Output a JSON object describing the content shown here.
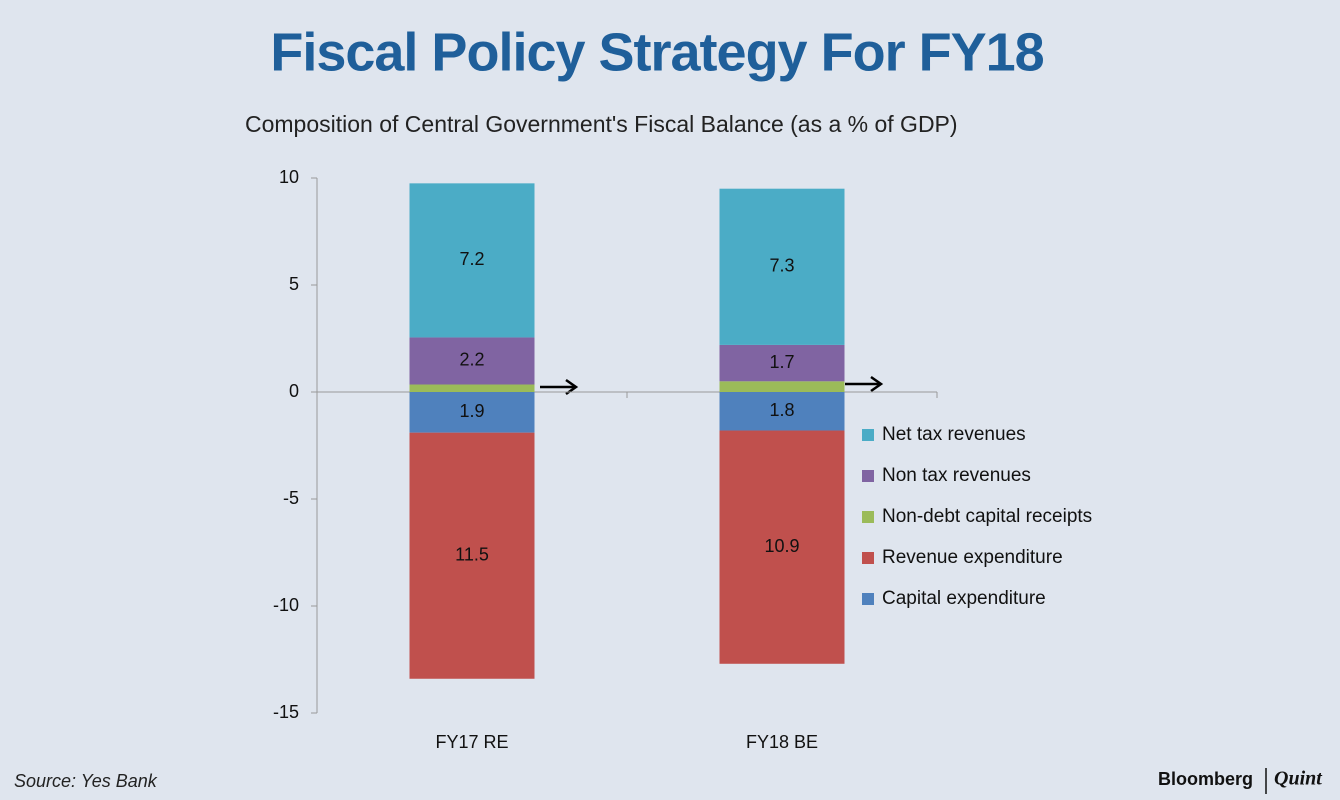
{
  "chart_data": {
    "type": "stacked-bar",
    "title": "Fiscal Policy Strategy For FY18",
    "subtitle": "Composition  of Central Government's Fiscal Balance (as a % of GDP)",
    "source": "Source: Yes Bank",
    "brand": [
      "Bloomberg",
      "Quint"
    ],
    "categories": [
      "FY17 RE",
      "FY18 BE"
    ],
    "series": [
      {
        "name": "Net tax revenues",
        "color": "#4bacc6",
        "values": [
          7.2,
          7.3
        ]
      },
      {
        "name": "Non tax revenues",
        "color": "#8064a2",
        "values": [
          2.2,
          1.7
        ]
      },
      {
        "name": "Non-debt capital receipts",
        "color": "#9bbb59",
        "values": [
          0.35,
          0.5
        ]
      },
      {
        "name": "Revenue expenditure",
        "color": "#c0504d",
        "values": [
          -11.5,
          -10.9
        ],
        "value_labels": [
          "11.5",
          "10.9"
        ]
      },
      {
        "name": "Capital expenditure",
        "color": "#4f81bd",
        "values": [
          -1.9,
          -1.8
        ],
        "value_labels": [
          "1.9",
          "1.8"
        ]
      }
    ],
    "ylim": [
      -15,
      10
    ],
    "yticks": [
      -15,
      -10,
      -5,
      0,
      5,
      10
    ],
    "grid": false
  }
}
